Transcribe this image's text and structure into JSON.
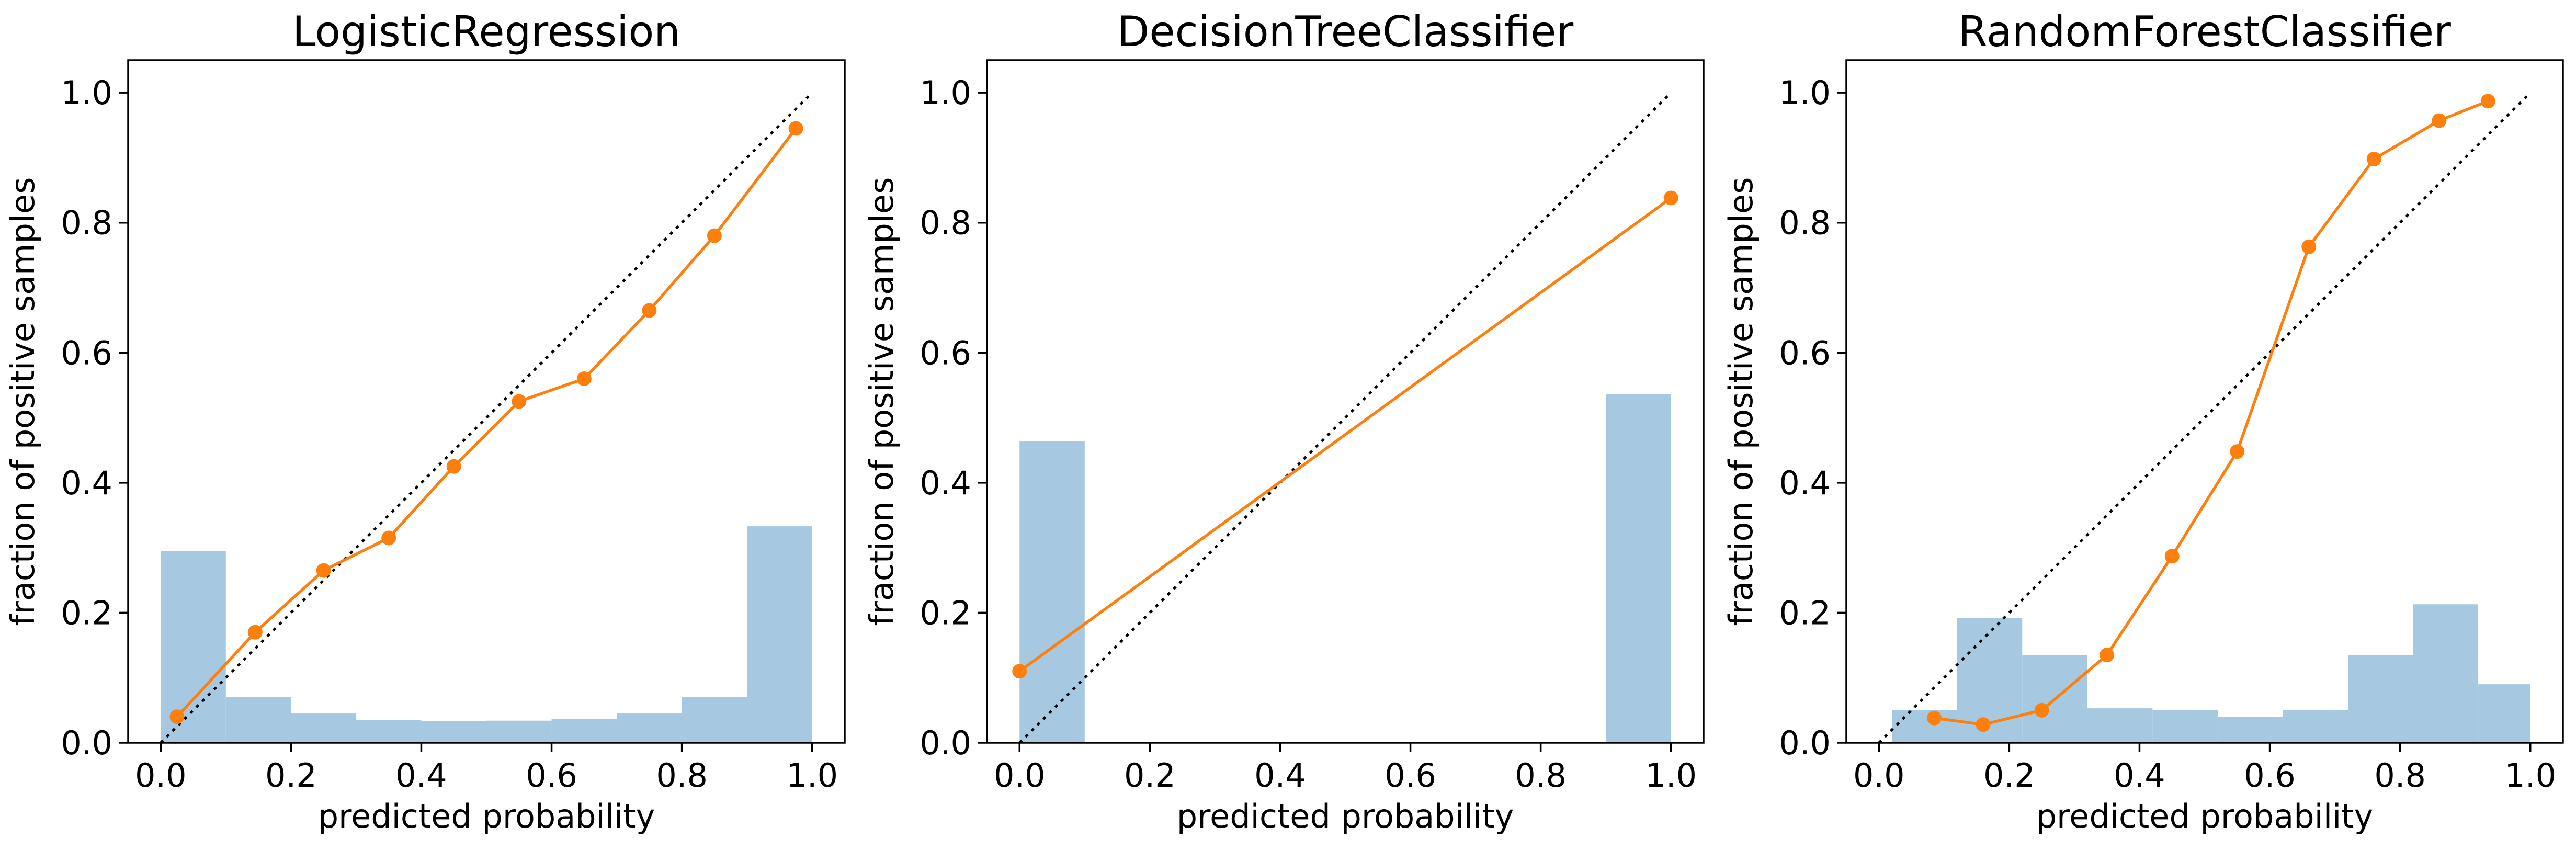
{
  "chart_data": [
    {
      "type": "line",
      "title": "LogisticRegression",
      "xlabel": "predicted probability",
      "ylabel": "fraction of positive samples",
      "xlim": [
        -0.05,
        1.05
      ],
      "ylim": [
        0.0,
        1.05
      ],
      "xticks": [
        "0.0",
        "0.2",
        "0.4",
        "0.6",
        "0.8",
        "1.0"
      ],
      "yticks": [
        "0.0",
        "0.2",
        "0.4",
        "0.6",
        "0.8",
        "1.0"
      ],
      "reference_line": {
        "x": [
          0,
          1
        ],
        "y": [
          0,
          1
        ],
        "style": "dotted",
        "color": "#000000"
      },
      "series": [
        {
          "x": [
            0.025,
            0.145,
            0.25,
            0.35,
            0.45,
            0.55,
            0.65,
            0.75,
            0.85,
            0.975
          ],
          "y": [
            0.04,
            0.17,
            0.265,
            0.315,
            0.425,
            0.525,
            0.56,
            0.665,
            0.78,
            0.945
          ],
          "color": "#ff7f0e",
          "marker": "circle"
        }
      ],
      "histogram": {
        "bins": [
          [
            0.0,
            0.1
          ],
          [
            0.1,
            0.2
          ],
          [
            0.2,
            0.3
          ],
          [
            0.3,
            0.4
          ],
          [
            0.4,
            0.5
          ],
          [
            0.5,
            0.6
          ],
          [
            0.6,
            0.7
          ],
          [
            0.7,
            0.8
          ],
          [
            0.8,
            0.9
          ],
          [
            0.9,
            1.0
          ]
        ],
        "heights": [
          0.295,
          0.07,
          0.045,
          0.035,
          0.033,
          0.034,
          0.037,
          0.045,
          0.07,
          0.333
        ],
        "color": "#a6c8e0"
      }
    },
    {
      "type": "line",
      "title": "DecisionTreeClassifier",
      "xlabel": "predicted probability",
      "ylabel": "fraction of positive samples",
      "xlim": [
        -0.05,
        1.05
      ],
      "ylim": [
        0.0,
        1.05
      ],
      "xticks": [
        "0.0",
        "0.2",
        "0.4",
        "0.6",
        "0.8",
        "1.0"
      ],
      "yticks": [
        "0.0",
        "0.2",
        "0.4",
        "0.6",
        "0.8",
        "1.0"
      ],
      "reference_line": {
        "x": [
          0,
          1
        ],
        "y": [
          0,
          1
        ],
        "style": "dotted",
        "color": "#000000"
      },
      "series": [
        {
          "x": [
            0.0,
            1.0
          ],
          "y": [
            0.11,
            0.838
          ],
          "color": "#ff7f0e",
          "marker": "circle"
        }
      ],
      "histogram": {
        "bins": [
          [
            0.0,
            0.1
          ],
          [
            0.9,
            1.0
          ]
        ],
        "heights": [
          0.464,
          0.536
        ],
        "color": "#a6c8e0"
      }
    },
    {
      "type": "line",
      "title": "RandomForestClassifier",
      "xlabel": "predicted probability",
      "ylabel": "fraction of positive samples",
      "xlim": [
        -0.05,
        1.05
      ],
      "ylim": [
        0.0,
        1.05
      ],
      "xticks": [
        "0.0",
        "0.2",
        "0.4",
        "0.6",
        "0.8",
        "1.0"
      ],
      "yticks": [
        "0.0",
        "0.2",
        "0.4",
        "0.6",
        "0.8",
        "1.0"
      ],
      "reference_line": {
        "x": [
          0,
          1
        ],
        "y": [
          0,
          1
        ],
        "style": "dotted",
        "color": "#000000"
      },
      "series": [
        {
          "x": [
            0.085,
            0.16,
            0.25,
            0.35,
            0.45,
            0.55,
            0.66,
            0.76,
            0.86,
            0.935
          ],
          "y": [
            0.038,
            0.028,
            0.05,
            0.135,
            0.287,
            0.448,
            0.763,
            0.898,
            0.957,
            0.987
          ],
          "color": "#ff7f0e",
          "marker": "circle"
        }
      ],
      "histogram": {
        "bins": [
          [
            0.02,
            0.12
          ],
          [
            0.12,
            0.22
          ],
          [
            0.22,
            0.32
          ],
          [
            0.32,
            0.42
          ],
          [
            0.42,
            0.52
          ],
          [
            0.52,
            0.62
          ],
          [
            0.62,
            0.72
          ],
          [
            0.72,
            0.82
          ],
          [
            0.82,
            0.92
          ],
          [
            0.92,
            1.0
          ]
        ],
        "heights": [
          0.05,
          0.192,
          0.135,
          0.053,
          0.05,
          0.04,
          0.05,
          0.135,
          0.213,
          0.09
        ],
        "color": "#a6c8e0"
      }
    }
  ]
}
